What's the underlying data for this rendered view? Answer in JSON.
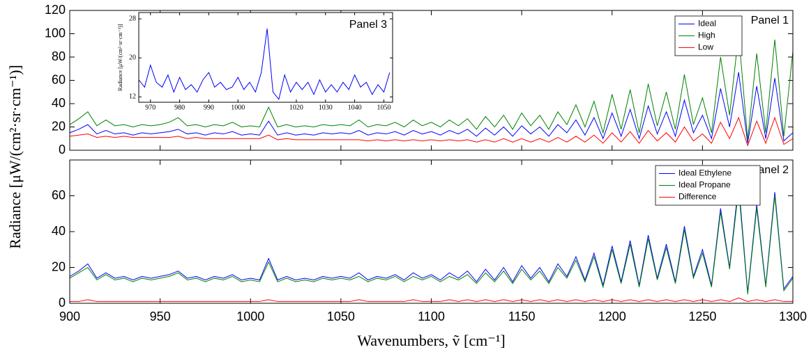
{
  "chart_data": [
    {
      "type": "line",
      "annotation": "Panel 1",
      "ylabel": "Radiance [μW/(cm²·sr·cm⁻¹)]",
      "x": [
        900,
        905,
        910,
        915,
        920,
        925,
        930,
        935,
        940,
        945,
        950,
        955,
        960,
        965,
        970,
        975,
        980,
        985,
        990,
        995,
        1000,
        1005,
        1010,
        1015,
        1020,
        1025,
        1030,
        1035,
        1040,
        1045,
        1050,
        1055,
        1060,
        1065,
        1070,
        1075,
        1080,
        1085,
        1090,
        1095,
        1100,
        1105,
        1110,
        1115,
        1120,
        1125,
        1130,
        1135,
        1140,
        1145,
        1150,
        1155,
        1160,
        1165,
        1170,
        1175,
        1180,
        1185,
        1190,
        1195,
        1200,
        1205,
        1210,
        1215,
        1220,
        1225,
        1230,
        1235,
        1240,
        1245,
        1250,
        1255,
        1260,
        1265,
        1270,
        1275,
        1280,
        1285,
        1290,
        1295,
        1300
      ],
      "xlim": [
        900,
        1300
      ],
      "xticks": [
        900,
        950,
        1000,
        1050,
        1100,
        1150,
        1200,
        1250,
        1300
      ],
      "ylim": [
        0,
        120
      ],
      "yticks": [
        0,
        20,
        40,
        60,
        80,
        100,
        120
      ],
      "legend": "upper right",
      "series": [
        {
          "name": "Ideal",
          "color": "#0000ff",
          "values": [
            15,
            18,
            22,
            14,
            17,
            14,
            15,
            13,
            15,
            14,
            15,
            16,
            18,
            14,
            15,
            13,
            15,
            14,
            16,
            13,
            14,
            13,
            25,
            13,
            15,
            13,
            14,
            13,
            15,
            14,
            15,
            14,
            17,
            13,
            15,
            14,
            16,
            13,
            17,
            14,
            16,
            13,
            17,
            14,
            18,
            12,
            19,
            13,
            20,
            12,
            21,
            14,
            20,
            12,
            22,
            15,
            26,
            13,
            28,
            10,
            32,
            12,
            35,
            10,
            38,
            14,
            33,
            12,
            43,
            15,
            30,
            10,
            53,
            20,
            67,
            6,
            55,
            10,
            62,
            8,
            15
          ]
        },
        {
          "name": "High",
          "color": "#008000",
          "values": [
            22,
            27,
            33,
            21,
            26,
            21,
            22,
            20,
            22,
            21,
            22,
            24,
            28,
            21,
            22,
            20,
            22,
            21,
            24,
            20,
            21,
            20,
            37,
            20,
            22,
            20,
            21,
            20,
            22,
            21,
            22,
            21,
            26,
            20,
            22,
            21,
            24,
            20,
            26,
            21,
            24,
            20,
            26,
            21,
            27,
            18,
            29,
            20,
            30,
            18,
            32,
            21,
            30,
            18,
            33,
            22,
            39,
            20,
            42,
            15,
            48,
            18,
            52,
            15,
            57,
            21,
            50,
            18,
            65,
            22,
            45,
            15,
            80,
            30,
            100,
            9,
            83,
            15,
            95,
            12,
            85
          ]
        },
        {
          "name": "Low",
          "color": "#ff0000",
          "values": [
            12,
            13,
            14,
            11,
            12,
            11,
            12,
            11,
            11,
            11,
            11,
            11,
            12,
            10,
            11,
            10,
            10,
            10,
            10,
            10,
            10,
            10,
            13,
            9,
            10,
            9,
            9,
            9,
            9,
            9,
            9,
            9,
            9,
            8,
            9,
            8,
            9,
            8,
            9,
            8,
            9,
            8,
            9,
            8,
            9,
            7,
            9,
            7,
            10,
            7,
            10,
            7,
            10,
            7,
            11,
            7,
            12,
            7,
            13,
            6,
            15,
            7,
            16,
            6,
            17,
            8,
            15,
            7,
            20,
            8,
            14,
            6,
            24,
            10,
            28,
            4,
            25,
            6,
            28,
            5,
            10
          ]
        }
      ]
    },
    {
      "type": "line",
      "annotation": "Panel 2",
      "xlabel": "Wavenumbers, ṽ [cm⁻¹]",
      "x": [
        900,
        905,
        910,
        915,
        920,
        925,
        930,
        935,
        940,
        945,
        950,
        955,
        960,
        965,
        970,
        975,
        980,
        985,
        990,
        995,
        1000,
        1005,
        1010,
        1015,
        1020,
        1025,
        1030,
        1035,
        1040,
        1045,
        1050,
        1055,
        1060,
        1065,
        1070,
        1075,
        1080,
        1085,
        1090,
        1095,
        1100,
        1105,
        1110,
        1115,
        1120,
        1125,
        1130,
        1135,
        1140,
        1145,
        1150,
        1155,
        1160,
        1165,
        1170,
        1175,
        1180,
        1185,
        1190,
        1195,
        1200,
        1205,
        1210,
        1215,
        1220,
        1225,
        1230,
        1235,
        1240,
        1245,
        1250,
        1255,
        1260,
        1265,
        1270,
        1275,
        1280,
        1285,
        1290,
        1295,
        1300
      ],
      "xlim": [
        900,
        1300
      ],
      "xticks": [
        900,
        950,
        1000,
        1050,
        1100,
        1150,
        1200,
        1250,
        1300
      ],
      "ylim": [
        0,
        80
      ],
      "yticks": [
        0,
        20,
        40,
        60
      ],
      "legend": "upper right",
      "series": [
        {
          "name": "Ideal Ethylene",
          "color": "#0000ff",
          "values": [
            15,
            18,
            22,
            14,
            17,
            14,
            15,
            13,
            15,
            14,
            15,
            16,
            18,
            14,
            15,
            13,
            15,
            14,
            16,
            13,
            14,
            13,
            25,
            13,
            15,
            13,
            14,
            13,
            15,
            14,
            15,
            14,
            17,
            13,
            15,
            14,
            16,
            13,
            17,
            14,
            16,
            13,
            17,
            14,
            18,
            12,
            19,
            13,
            20,
            12,
            21,
            14,
            20,
            12,
            22,
            15,
            26,
            13,
            28,
            10,
            32,
            12,
            35,
            10,
            38,
            14,
            33,
            12,
            43,
            15,
            30,
            10,
            53,
            20,
            67,
            6,
            55,
            10,
            62,
            8,
            15
          ]
        },
        {
          "name": "Ideal Propane",
          "color": "#008000",
          "values": [
            14,
            17,
            20,
            13,
            16,
            13,
            14,
            12,
            14,
            13,
            14,
            15,
            17,
            13,
            14,
            12,
            14,
            13,
            15,
            12,
            13,
            12,
            23,
            12,
            14,
            12,
            13,
            12,
            14,
            13,
            14,
            13,
            15,
            12,
            14,
            13,
            15,
            12,
            15,
            13,
            15,
            12,
            15,
            13,
            16,
            11,
            17,
            12,
            18,
            11,
            19,
            13,
            18,
            11,
            20,
            14,
            24,
            12,
            26,
            9,
            30,
            11,
            33,
            9,
            36,
            13,
            31,
            11,
            41,
            14,
            28,
            9,
            51,
            19,
            64,
            5,
            53,
            9,
            60,
            7,
            14
          ]
        },
        {
          "name": "Difference",
          "color": "#ff0000",
          "values": [
            1,
            1,
            2,
            1,
            1,
            1,
            1,
            1,
            1,
            1,
            1,
            1,
            1,
            1,
            1,
            1,
            1,
            1,
            1,
            1,
            1,
            1,
            2,
            1,
            1,
            1,
            1,
            1,
            1,
            1,
            1,
            1,
            2,
            1,
            1,
            1,
            1,
            1,
            2,
            1,
            1,
            1,
            2,
            1,
            2,
            1,
            2,
            1,
            2,
            1,
            2,
            1,
            2,
            1,
            2,
            1,
            2,
            1,
            2,
            1,
            2,
            1,
            2,
            1,
            2,
            1,
            2,
            1,
            2,
            1,
            2,
            1,
            2,
            1,
            3,
            1,
            2,
            1,
            2,
            1,
            1
          ]
        }
      ]
    },
    {
      "type": "line",
      "annotation": "Panel 3",
      "ylabel": "Radiance [μW/(cm²·sr·cm⁻¹)]",
      "x": [
        966,
        968,
        970,
        972,
        974,
        976,
        978,
        980,
        982,
        984,
        986,
        988,
        990,
        992,
        994,
        996,
        998,
        1000,
        1002,
        1004,
        1006,
        1008,
        1010,
        1012,
        1014,
        1016,
        1018,
        1020,
        1022,
        1024,
        1026,
        1028,
        1030,
        1032,
        1034,
        1036,
        1038,
        1040,
        1042,
        1044,
        1046,
        1048,
        1050,
        1052
      ],
      "xlim": [
        966,
        1053
      ],
      "xticks": [
        970,
        980,
        990,
        1000,
        1020,
        1030,
        1040,
        1050
      ],
      "ylim": [
        10.9,
        29.3
      ],
      "yticks": [
        12,
        20,
        28
      ],
      "series": [
        {
          "color": "#0000ff",
          "values": [
            15.5,
            14,
            18.5,
            15,
            14,
            16.5,
            13,
            16,
            13.5,
            14.5,
            13,
            15.5,
            17,
            14,
            15,
            13.5,
            14,
            16,
            13.5,
            15,
            13,
            17,
            26,
            13,
            11.5,
            16.5,
            13,
            15,
            13.5,
            15,
            12.5,
            15.5,
            13,
            14.5,
            13,
            15,
            13.5,
            16.5,
            14,
            15,
            12.5,
            14.5,
            13,
            17
          ]
        }
      ]
    }
  ]
}
